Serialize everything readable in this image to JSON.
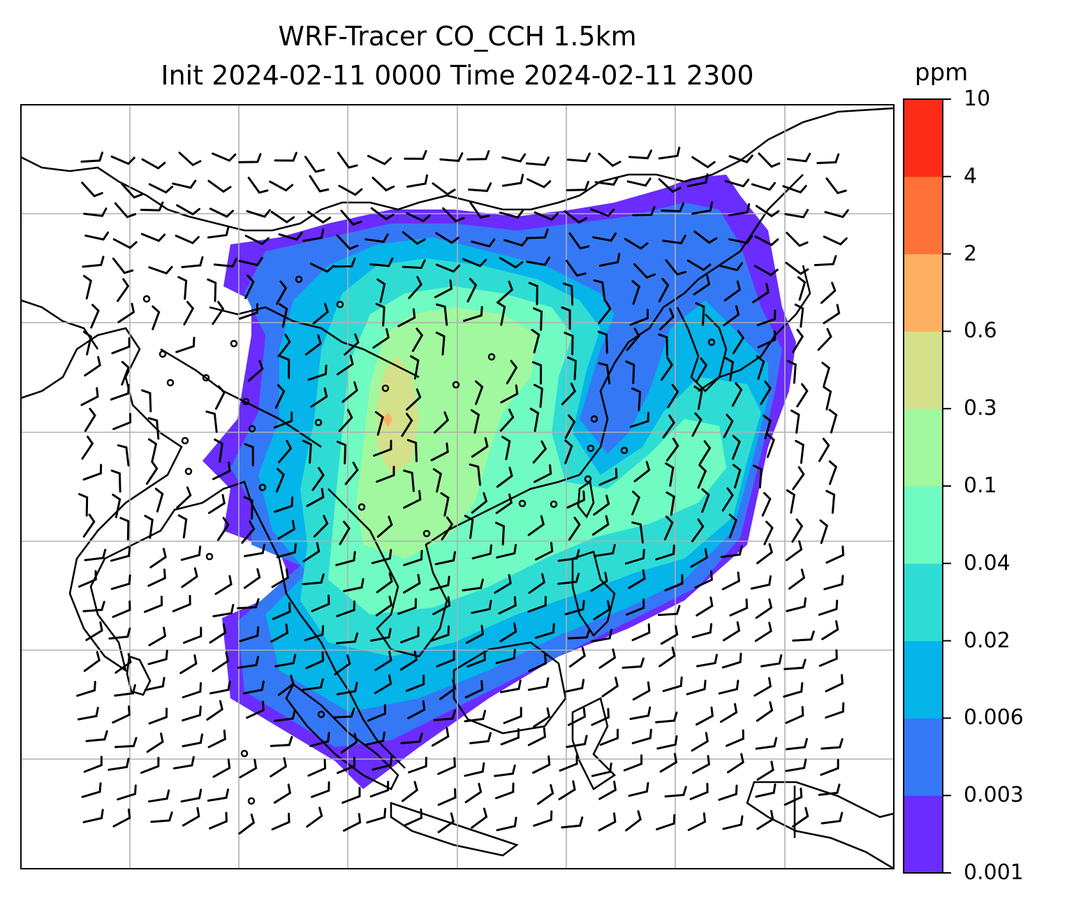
{
  "title": {
    "line1": "WRF-Tracer CO_CCH 1.5km",
    "line2": "Init 2024-02-11 0000 Time 2024-02-11 2300"
  },
  "colorbar": {
    "unit": "ppm",
    "levels": [
      "0.001",
      "0.003",
      "0.006",
      "0.02",
      "0.04",
      "0.1",
      "0.3",
      "0.6",
      "2",
      "4",
      "10"
    ],
    "colors": [
      "#6a2cff",
      "#3578f5",
      "#05b4e9",
      "#2fdcd4",
      "#6ffbc2",
      "#a1f89e",
      "#d4e18a",
      "#fdb062",
      "#fe7139",
      "#fc2b17"
    ]
  },
  "map": {
    "grid_color": "#b0b0b0",
    "coast_color": "#000000",
    "barb_color": "#000000"
  }
}
